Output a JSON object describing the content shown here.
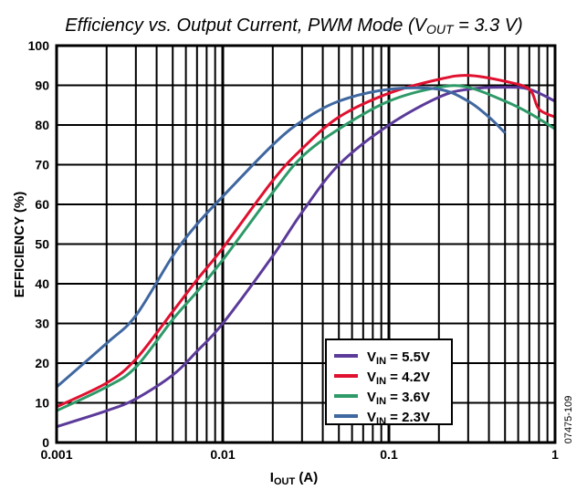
{
  "chart_data": {
    "type": "line",
    "title": "Efficiency vs. Output Current, PWM Mode (V",
    "title_sub": "OUT",
    "title_tail": " = 3.3 V)",
    "xlabel": "I",
    "xlabel_sub": "OUT",
    "xlabel_tail": " (A)",
    "ylabel": "EFFICIENCY (%)",
    "xscale": "log",
    "xlim": [
      0.001,
      1
    ],
    "ylim": [
      0,
      100
    ],
    "grid": true,
    "legend_placement": "bottom-right",
    "xticks": [
      "0.001",
      "0.01",
      "0.1",
      "1"
    ],
    "yticks": [
      "0",
      "10",
      "20",
      "30",
      "40",
      "50",
      "60",
      "70",
      "80",
      "90",
      "100"
    ],
    "figure_id": "07475-109",
    "series": [
      {
        "name": "V",
        "name_sub": "IN",
        "name_tail": " = 5.5V",
        "color": "#5b3a99",
        "x": [
          0.001,
          0.002,
          0.003,
          0.005,
          0.007,
          0.01,
          0.02,
          0.03,
          0.05,
          0.1,
          0.2,
          0.3,
          0.5,
          0.7,
          1
        ],
        "y": [
          4,
          8,
          11,
          17,
          23,
          30,
          47,
          58,
          70,
          80,
          87,
          89,
          89.5,
          89,
          86
        ]
      },
      {
        "name": "V",
        "name_sub": "IN",
        "name_tail": " = 4.2V",
        "color": "#e0102f",
        "x": [
          0.001,
          0.002,
          0.003,
          0.005,
          0.007,
          0.01,
          0.02,
          0.03,
          0.05,
          0.1,
          0.2,
          0.3,
          0.5,
          0.7,
          0.8,
          1
        ],
        "y": [
          9,
          15,
          21,
          33,
          41,
          49,
          66,
          74,
          82,
          88,
          91.5,
          92.5,
          91,
          89,
          84,
          82
        ]
      },
      {
        "name": "V",
        "name_sub": "IN",
        "name_tail": " = 3.6V",
        "color": "#2e9a68",
        "x": [
          0.001,
          0.002,
          0.003,
          0.005,
          0.007,
          0.01,
          0.02,
          0.03,
          0.05,
          0.1,
          0.2,
          0.3,
          0.5,
          0.7,
          1
        ],
        "y": [
          8,
          14,
          19,
          31,
          38,
          46,
          63,
          72,
          79,
          86,
          89.5,
          89.5,
          86,
          83,
          79
        ]
      },
      {
        "name": "V",
        "name_sub": "IN",
        "name_tail": " = 2.3V",
        "color": "#3f67a0",
        "x": [
          0.001,
          0.002,
          0.003,
          0.005,
          0.007,
          0.01,
          0.02,
          0.03,
          0.05,
          0.1,
          0.2,
          0.3,
          0.4,
          0.5
        ],
        "y": [
          14,
          25,
          32,
          47,
          55,
          62,
          75,
          81,
          86,
          89,
          89,
          86,
          82,
          78
        ]
      }
    ]
  }
}
